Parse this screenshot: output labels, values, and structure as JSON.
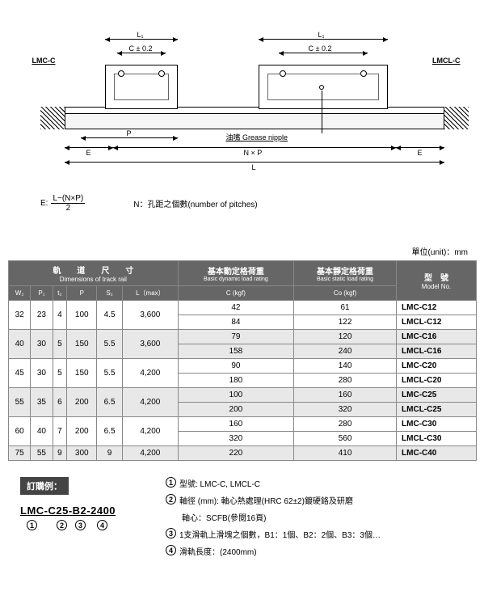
{
  "diagram": {
    "label_left": "LMC-C",
    "label_right": "LMCL-C",
    "dim_L1_left": "L₁",
    "dim_L1_right": "L₁",
    "dim_C": "C ± 0.2",
    "dim_C2": "C ± 0.2",
    "dim_E_left": "E",
    "dim_E_right": "E",
    "dim_P": "P",
    "dim_NP": "N × P",
    "dim_L": "L",
    "nipple_label": "油嘴 Grease nipple"
  },
  "formula": {
    "e_label": "E:",
    "numerator": "L−(N×P)",
    "denominator": "2",
    "n_label": "N：孔距之個數(number of pitches)"
  },
  "unit_label": "單位(unit)：mm",
  "table": {
    "header_groups": {
      "rail_cn": "軌　　道　　尺　　寸",
      "rail_en": "Dimensions of track rail",
      "dynamic_cn": "基本動定格荷重",
      "dynamic_en": "Basic dynamic load rating",
      "static_cn": "基本靜定格荷重",
      "static_en": "Basic static load rating",
      "model_cn": "型　號",
      "model_en": "Model No."
    },
    "cols": [
      "W₂",
      "P₁",
      "t₂",
      "P",
      "S₂",
      "L（max）",
      "C (kgf)",
      "Co (kgf)"
    ],
    "rows": [
      {
        "w2": "32",
        "p1": "23",
        "t2": "4",
        "p": "100",
        "s2": "4.5",
        "lmax": "3,600",
        "c": "42",
        "co": "61",
        "model": "LMC-C12",
        "alt": false
      },
      {
        "w2": "",
        "p1": "",
        "t2": "",
        "p": "",
        "s2": "",
        "lmax": "",
        "c": "84",
        "co": "122",
        "model": "LMCL-C12",
        "alt": false
      },
      {
        "w2": "40",
        "p1": "30",
        "t2": "5",
        "p": "150",
        "s2": "5.5",
        "lmax": "3,600",
        "c": "79",
        "co": "120",
        "model": "LMC-C16",
        "alt": true
      },
      {
        "w2": "",
        "p1": "",
        "t2": "",
        "p": "",
        "s2": "",
        "lmax": "",
        "c": "158",
        "co": "240",
        "model": "LMCL-C16",
        "alt": true
      },
      {
        "w2": "45",
        "p1": "30",
        "t2": "5",
        "p": "150",
        "s2": "5.5",
        "lmax": "4,200",
        "c": "90",
        "co": "140",
        "model": "LMC-C20",
        "alt": false
      },
      {
        "w2": "",
        "p1": "",
        "t2": "",
        "p": "",
        "s2": "",
        "lmax": "",
        "c": "180",
        "co": "280",
        "model": "LMCL-C20",
        "alt": false
      },
      {
        "w2": "55",
        "p1": "35",
        "t2": "6",
        "p": "200",
        "s2": "6.5",
        "lmax": "4,200",
        "c": "100",
        "co": "160",
        "model": "LMC-C25",
        "alt": true
      },
      {
        "w2": "",
        "p1": "",
        "t2": "",
        "p": "",
        "s2": "",
        "lmax": "",
        "c": "200",
        "co": "320",
        "model": "LMCL-C25",
        "alt": true
      },
      {
        "w2": "60",
        "p1": "40",
        "t2": "7",
        "p": "200",
        "s2": "6.5",
        "lmax": "4,200",
        "c": "160",
        "co": "280",
        "model": "LMC-C30",
        "alt": false
      },
      {
        "w2": "",
        "p1": "",
        "t2": "",
        "p": "",
        "s2": "",
        "lmax": "",
        "c": "320",
        "co": "560",
        "model": "LMCL-C30",
        "alt": false
      },
      {
        "w2": "75",
        "p1": "55",
        "t2": "9",
        "p": "300",
        "s2": "9",
        "lmax": "4,200",
        "c": "220",
        "co": "410",
        "model": "LMC-C40",
        "alt": true
      }
    ]
  },
  "order": {
    "title": "訂購例：",
    "code": "LMC-C25-B2-2400",
    "nums": [
      "1",
      "2",
      "3",
      "4"
    ],
    "notes": [
      {
        "n": "1",
        "text": "型號: LMC-C, LMCL-C"
      },
      {
        "n": "2",
        "text": "軸徑 (mm): 軸心熱處理(HRC 62±2)鍍硬鉻及研磨"
      },
      {
        "n": "2b",
        "text": "軸心：SCFB(參閱16頁)"
      },
      {
        "n": "3",
        "text": "1支滑軌上滑塊之個數，B1：1個、B2：2個、B3：3個…"
      },
      {
        "n": "4",
        "text": "滑軌長度：(2400mm)"
      }
    ]
  }
}
